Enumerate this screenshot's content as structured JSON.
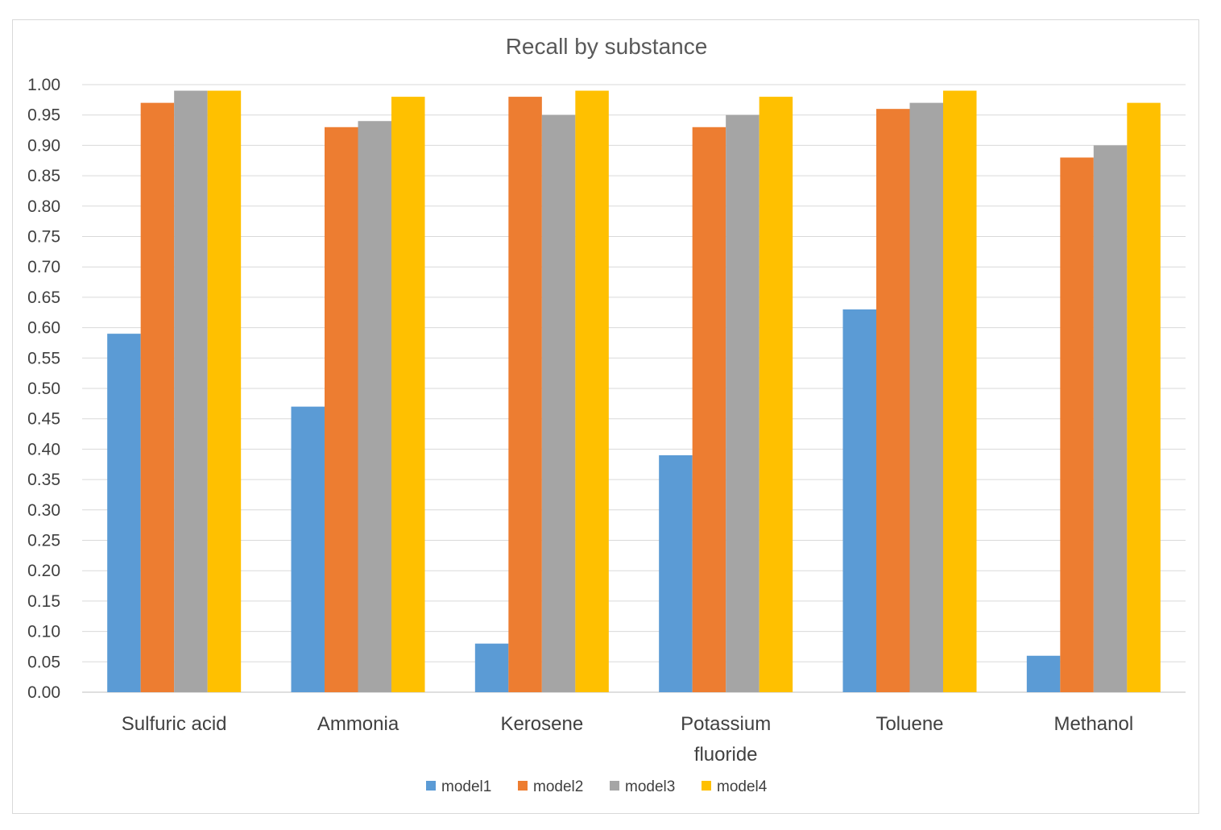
{
  "chart_data": {
    "type": "bar",
    "title": "Recall by substance",
    "xlabel": "",
    "ylabel": "",
    "ylim": [
      0,
      1
    ],
    "ytick_step": 0.05,
    "yticks": [
      "0.00",
      "0.05",
      "0.10",
      "0.15",
      "0.20",
      "0.25",
      "0.30",
      "0.35",
      "0.40",
      "0.45",
      "0.50",
      "0.55",
      "0.60",
      "0.65",
      "0.70",
      "0.75",
      "0.80",
      "0.85",
      "0.90",
      "0.95",
      "1.00"
    ],
    "categories": [
      [
        "Sulfuric acid"
      ],
      [
        "Ammonia"
      ],
      [
        "Kerosene"
      ],
      [
        "Potassium",
        "fluoride"
      ],
      [
        "Toluene"
      ],
      [
        "Methanol"
      ]
    ],
    "series": [
      {
        "name": "model1",
        "color": "#5b9bd5",
        "values": [
          0.59,
          0.47,
          0.08,
          0.39,
          0.63,
          0.06
        ]
      },
      {
        "name": "model2",
        "color": "#ed7d31",
        "values": [
          0.97,
          0.93,
          0.98,
          0.93,
          0.96,
          0.88
        ]
      },
      {
        "name": "model3",
        "color": "#a5a5a5",
        "values": [
          0.99,
          0.94,
          0.95,
          0.95,
          0.97,
          0.9
        ]
      },
      {
        "name": "model4",
        "color": "#ffc000",
        "values": [
          0.99,
          0.98,
          0.99,
          0.98,
          0.99,
          0.97
        ]
      }
    ],
    "grid": true,
    "legend_position": "bottom"
  }
}
